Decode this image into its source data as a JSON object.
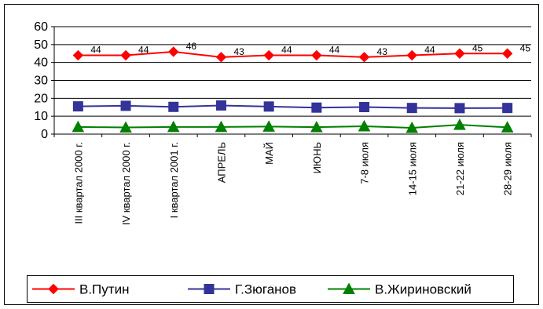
{
  "chart_data": {
    "type": "line",
    "categories": [
      "III квартал 2000 г.",
      "IV квартал 2000 г.",
      "I квартал 2001 г.",
      "АПРЕЛЬ",
      "МАЙ",
      "ИЮНЬ",
      "7-8 июля",
      "14-15 июля",
      "21-22 июля",
      "28-29 июля"
    ],
    "series": [
      {
        "name": "В.Путин",
        "color": "#ff0000",
        "marker": "diamond",
        "values": [
          44,
          44,
          46,
          43,
          44,
          44,
          43,
          44,
          45,
          45
        ],
        "labels": [
          "44",
          "44",
          "46",
          "43",
          "44",
          "44",
          "43",
          "44",
          "45",
          "45"
        ]
      },
      {
        "name": "Г.Зюганов",
        "color": "#333399",
        "marker": "square",
        "values": [
          15.5,
          15.8,
          15.2,
          16,
          15.4,
          14.8,
          15.1,
          14.6,
          14.5,
          14.6
        ]
      },
      {
        "name": "В.Жириновский",
        "color": "#008000",
        "marker": "triangle",
        "values": [
          4,
          3.7,
          4,
          4,
          4.2,
          3.9,
          4.4,
          3.5,
          5.2,
          3.8
        ]
      }
    ],
    "yticks": [
      "0",
      "10",
      "20",
      "30",
      "40",
      "50",
      "60"
    ],
    "ylim": [
      0,
      60
    ],
    "grid": true,
    "legend": "bottom"
  }
}
